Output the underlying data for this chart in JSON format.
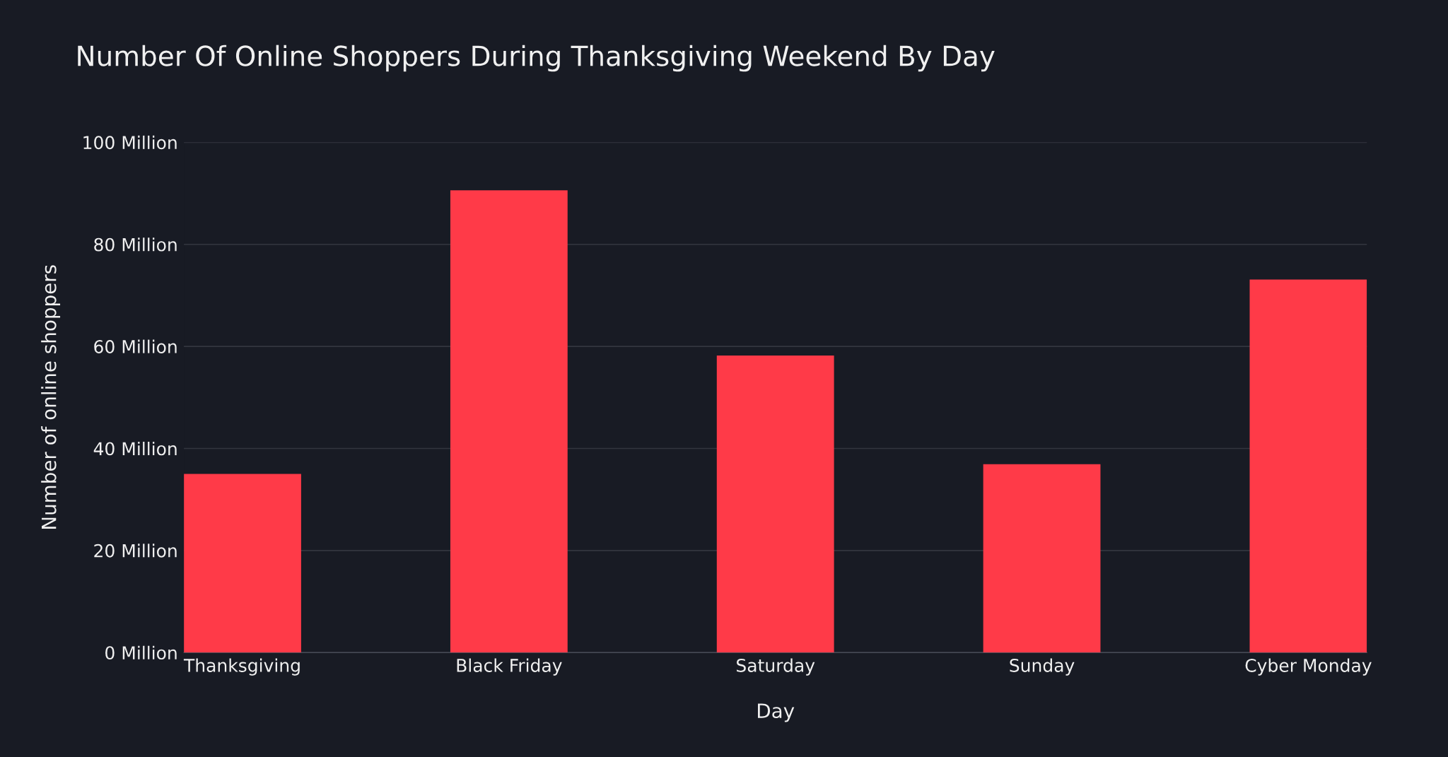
{
  "chart_data": {
    "type": "bar",
    "title": "Number Of Online Shoppers During Thanksgiving Weekend By Day",
    "xlabel": "Day",
    "ylabel": "Number of online shoppers",
    "categories": [
      "Thanksgiving",
      "Black Friday",
      "Saturday",
      "Sunday",
      "Cyber Monday"
    ],
    "values": [
      35,
      90.6,
      58.2,
      36.9,
      73.1
    ],
    "color": "#ff3a48",
    "ylim": [
      0,
      100
    ],
    "yticks": [
      {
        "value": 0,
        "label": "0 Million"
      },
      {
        "value": 20,
        "label": "20 Million"
      },
      {
        "value": 40,
        "label": "40 Million"
      },
      {
        "value": 60,
        "label": "60 Million"
      },
      {
        "value": 80,
        "label": "80 Million"
      },
      {
        "value": 100,
        "label": "100 Million"
      }
    ],
    "grid": "y",
    "legend": false
  }
}
